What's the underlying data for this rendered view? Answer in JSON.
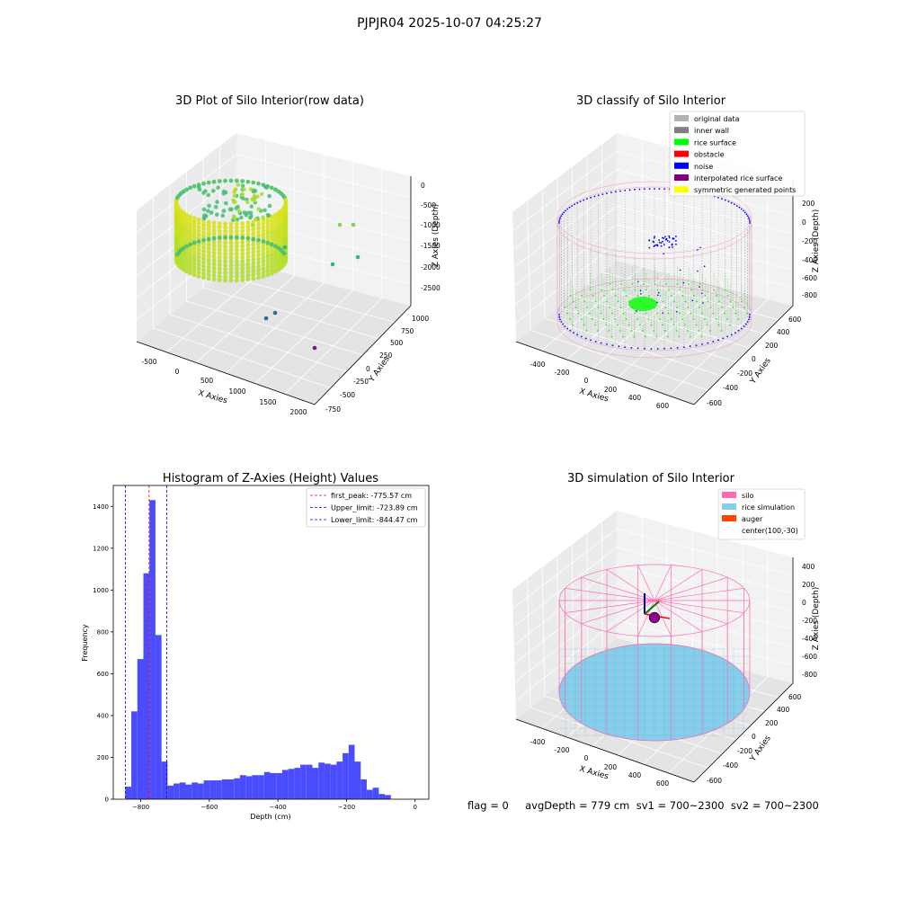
{
  "figure_title": "PJPJR04 2025-10-07 04:25:27",
  "footer_text": "flag = 0     avgDepth = 779 cm  sv1 = 700~2300  sv2 = 700~2300",
  "colors": {
    "original_data": "#b3b3b3",
    "inner_wall": "#808080",
    "rice_surface": "#00ff00",
    "obstacle": "#ff0000",
    "noise": "#0000ff",
    "interpolated_rice_surface": "#800080",
    "symmetric_generated_points": "#ffff00",
    "silo": "#ff69b4",
    "rice_simulation": "#87ceeb",
    "auger": "#ff4500",
    "hist_bar": "#4c4cff",
    "pane": "#f0f0f0"
  },
  "chart_data": [
    {
      "type": "scatter",
      "projection": "3d",
      "title": "3D Plot of Silo Interior(row data)",
      "xlabel": "X Axies",
      "ylabel": "Y Axies",
      "zlabel": "Z Axies (Depth)",
      "x_ticks": [
        "-500",
        "0",
        "500",
        "1000",
        "1500",
        "2000"
      ],
      "y_ticks": [
        "-750",
        "-500",
        "-250",
        "0",
        "250",
        "500",
        "750",
        "1000"
      ],
      "z_ticks": [
        "0",
        "-500",
        "-1000",
        "-1500",
        "-2000",
        "-2500"
      ],
      "outliers": [
        {
          "x": 1300,
          "y": 700,
          "z": -900
        },
        {
          "x": 1450,
          "y": 750,
          "z": -900
        },
        {
          "x": 1150,
          "y": 500,
          "z": -1450
        },
        {
          "x": 1350,
          "y": 300,
          "z": -1850
        },
        {
          "x": 1700,
          "y": 550,
          "z": -1700
        },
        {
          "x": 1000,
          "y": -200,
          "z": -2500
        },
        {
          "x": 800,
          "y": -300,
          "z": -2650
        },
        {
          "x": 1750,
          "y": -500,
          "z": -2800
        }
      ]
    },
    {
      "type": "scatter",
      "projection": "3d",
      "title": "3D classify of Silo Interior",
      "xlabel": "X Axies",
      "ylabel": "Y Axies",
      "zlabel": "Z Axies (Depth)",
      "x_ticks": [
        "-400",
        "-200",
        "0",
        "200",
        "400",
        "600"
      ],
      "y_ticks": [
        "-600",
        "-400",
        "-200",
        "0",
        "200",
        "400",
        "600"
      ],
      "z_ticks": [
        "200",
        "0",
        "-200",
        "-400",
        "-600",
        "-800"
      ],
      "legend": [
        "original data",
        "inner wall",
        "rice surface",
        "obstacle",
        "noise",
        "interpolated rice surface",
        "symmetric generated points"
      ],
      "legend_loc": "upper right"
    },
    {
      "type": "bar",
      "title": "Histogram of Z-Axies (Height) Values",
      "xlabel": "Depth (cm)",
      "ylabel": "Frequency",
      "xlim": [
        -880,
        40
      ],
      "ylim": [
        0,
        1500
      ],
      "x_ticks": [
        -800,
        -600,
        -400,
        -200,
        0
      ],
      "y_ticks": [
        0,
        200,
        400,
        600,
        800,
        1000,
        1200,
        1400
      ],
      "bin_width": 17.6,
      "bins_start": -845,
      "values": [
        60,
        420,
        670,
        1080,
        1430,
        785,
        180,
        65,
        75,
        80,
        70,
        80,
        75,
        90,
        90,
        90,
        95,
        95,
        100,
        115,
        110,
        115,
        115,
        130,
        125,
        125,
        140,
        145,
        150,
        165,
        165,
        150,
        175,
        170,
        165,
        180,
        220,
        260,
        180,
        95,
        45,
        55,
        25,
        20
      ],
      "lines": [
        {
          "label": "first_peak: -775.57 cm",
          "x": -775.57,
          "color": "#ff0000"
        },
        {
          "label": "Upper_limit: -723.89 cm",
          "x": -723.89,
          "color": "#0000ff"
        },
        {
          "label": "Lower_limit: -844.47 cm",
          "x": -844.47,
          "color": "#0000ff"
        }
      ],
      "legend_loc": "upper right"
    },
    {
      "type": "scatter",
      "projection": "3d",
      "title": "3D simulation of Silo Interior",
      "xlabel": "X Axies",
      "ylabel": "Y Axies",
      "zlabel": "Z Axies (Depth)",
      "x_ticks": [
        "-400",
        "-200",
        "0",
        "200",
        "400",
        "600"
      ],
      "y_ticks": [
        "-600",
        "-400",
        "-200",
        "0",
        "200",
        "400",
        "600"
      ],
      "z_ticks": [
        "400",
        "200",
        "0",
        "-200",
        "-400",
        "-600",
        "-800"
      ],
      "legend": [
        "silo",
        "rice simulation",
        "auger",
        "center(100,-30)"
      ],
      "legend_loc": "upper right"
    }
  ]
}
